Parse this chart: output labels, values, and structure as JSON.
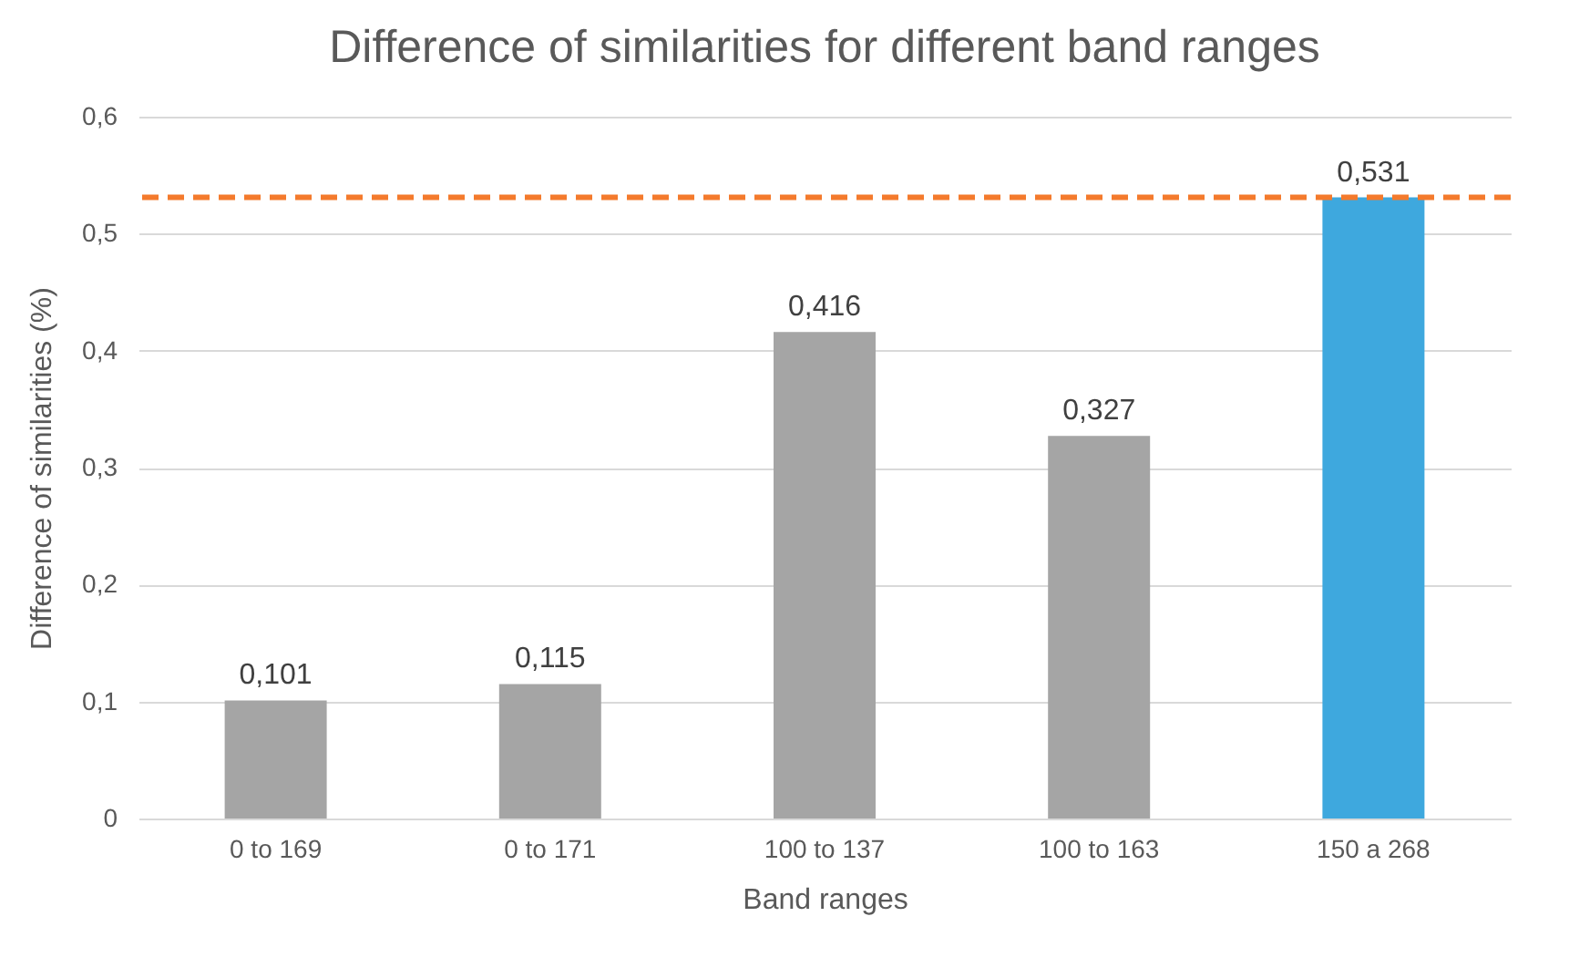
{
  "chart_data": {
    "type": "bar",
    "title": "Difference of similarities for different band ranges",
    "xlabel": "Band ranges",
    "ylabel": "Difference of similarities (%)",
    "categories": [
      "0 to 169",
      "0 to 171",
      "100 to 137",
      "100 to 163",
      "150 a 268"
    ],
    "values": [
      0.101,
      0.115,
      0.416,
      0.327,
      0.531
    ],
    "colors": [
      "#a5a5a5",
      "#a5a5a5",
      "#a5a5a5",
      "#a5a5a5",
      "#3ea8de"
    ],
    "value_labels": [
      "0,101",
      "0,115",
      "0,416",
      "0,327",
      "0,531"
    ],
    "ylim": [
      0,
      0.6
    ],
    "yticks": [
      {
        "value": 0,
        "label": "0"
      },
      {
        "value": 0.1,
        "label": "0,1"
      },
      {
        "value": 0.2,
        "label": "0,2"
      },
      {
        "value": 0.3,
        "label": "0,3"
      },
      {
        "value": 0.4,
        "label": "0,4"
      },
      {
        "value": 0.5,
        "label": "0,5"
      },
      {
        "value": 0.6,
        "label": "0,6"
      }
    ],
    "ref_lines": [
      {
        "axis": "y",
        "value": 0.531,
        "color": "#f47a2c",
        "line_style": "dashed"
      }
    ],
    "grid": "y"
  }
}
